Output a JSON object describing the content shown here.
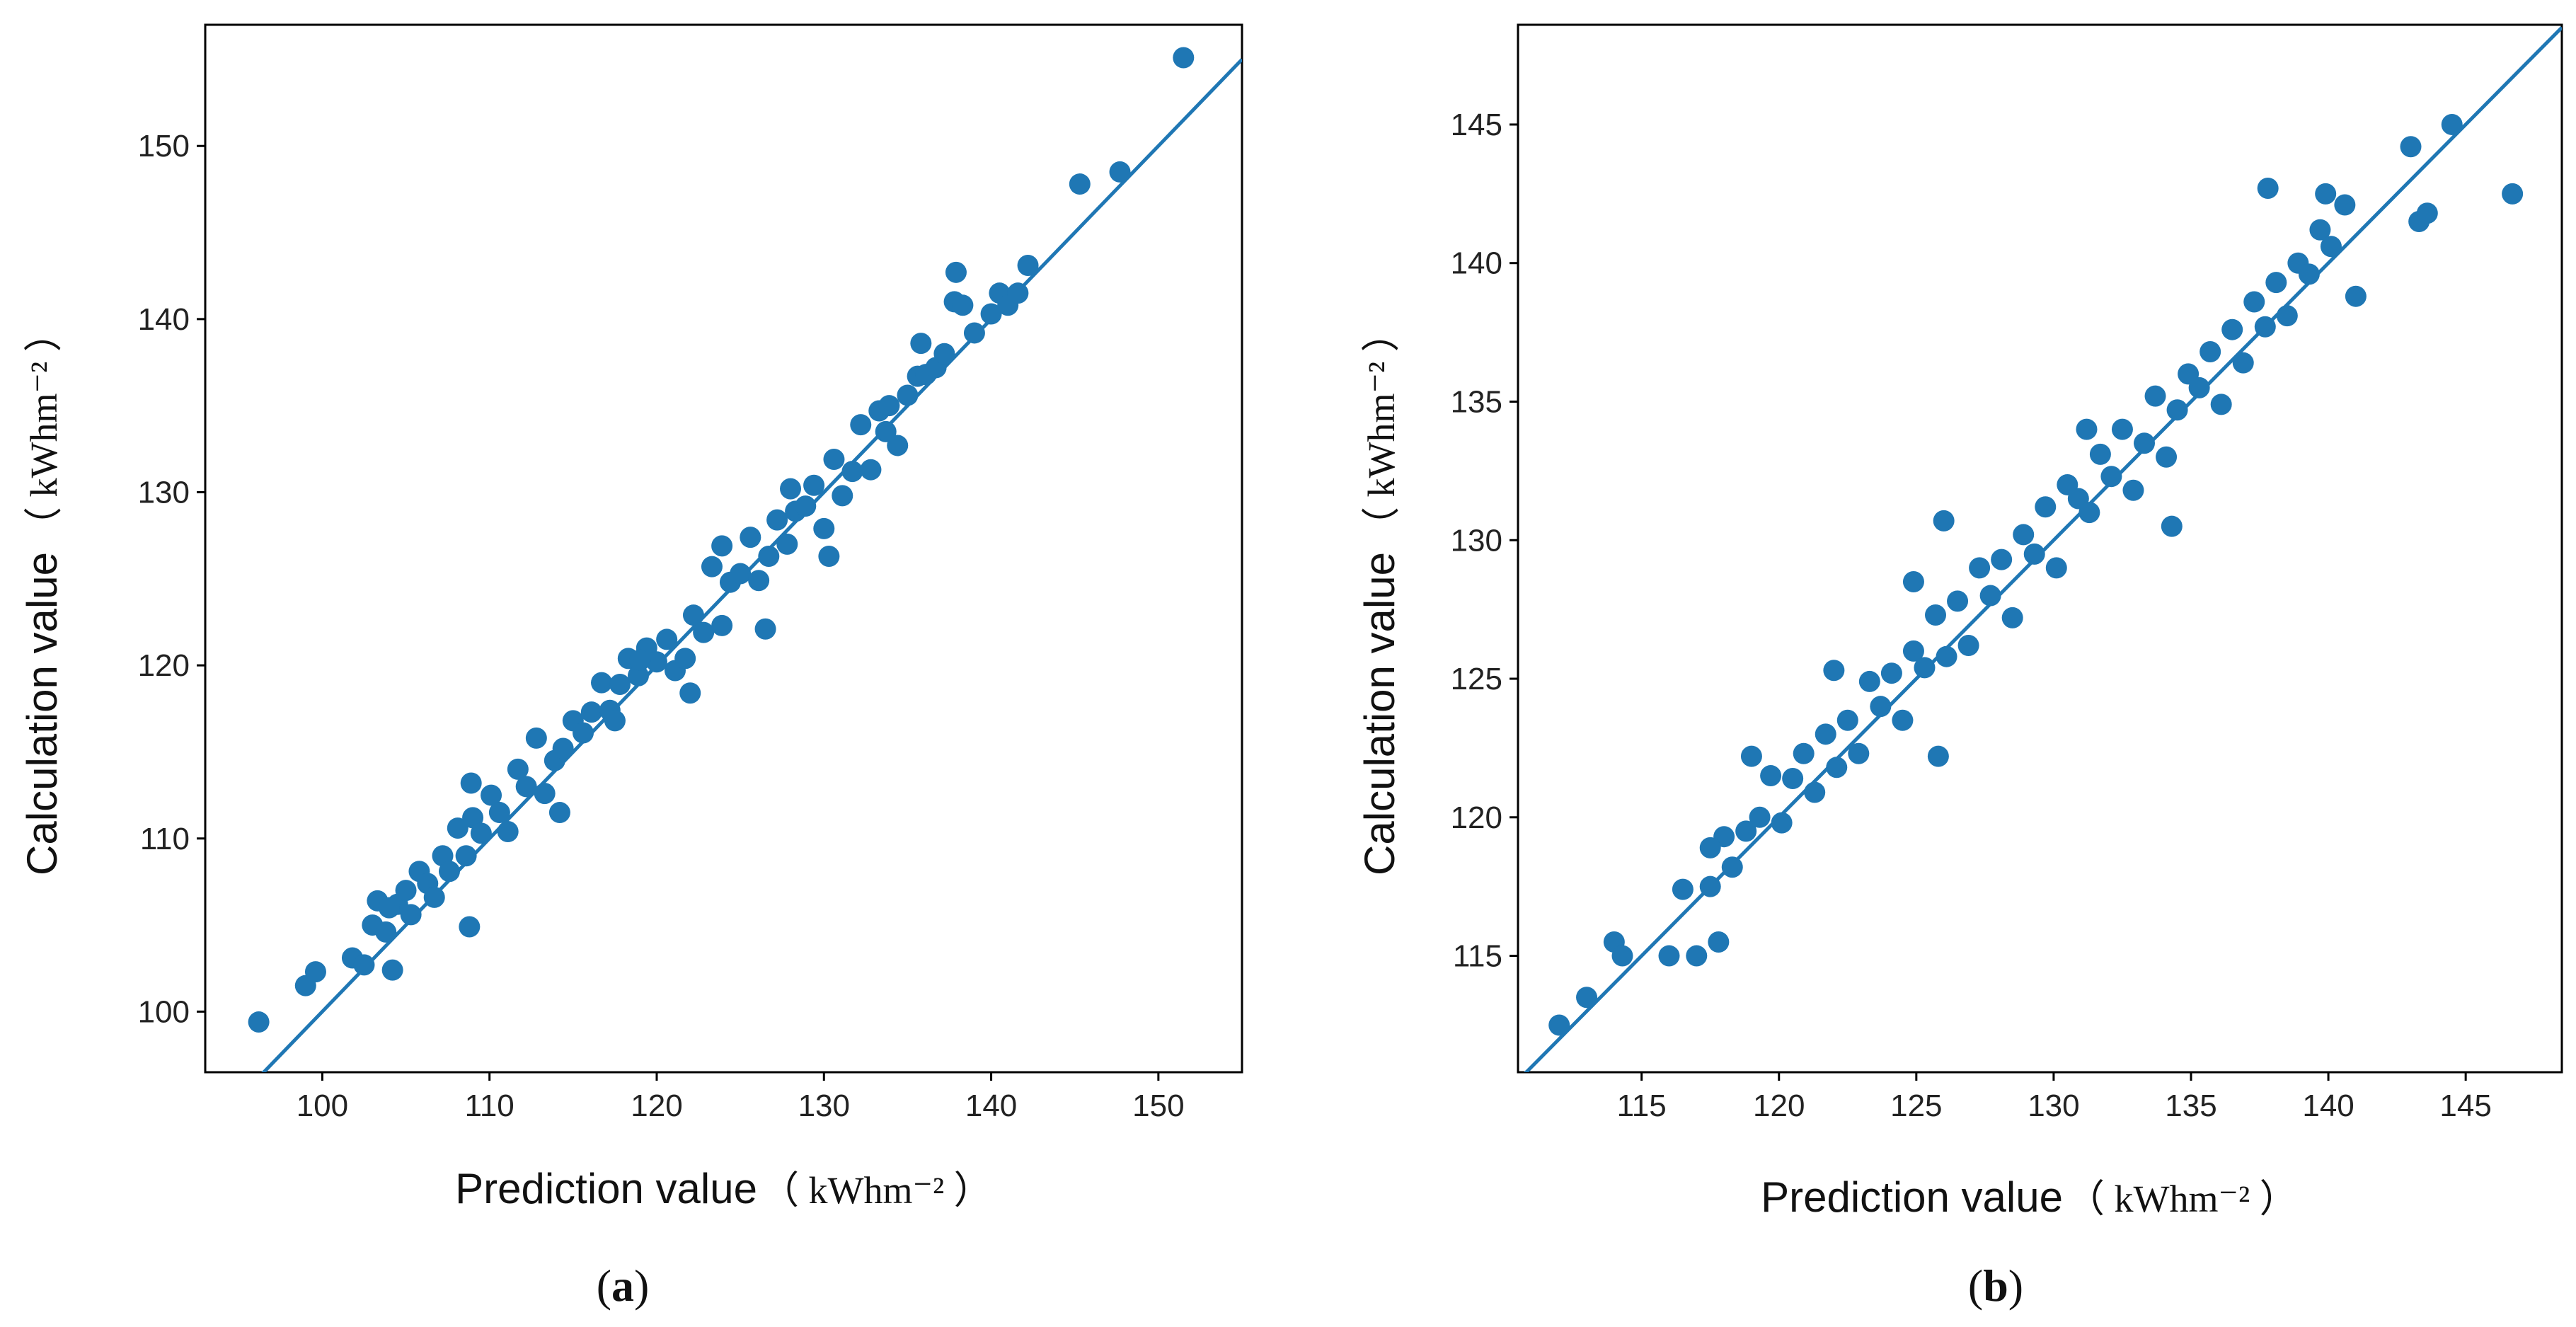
{
  "chart_data": [
    {
      "id": "a",
      "type": "scatter",
      "caption": {
        "open": "(",
        "letter": "a",
        "close": ")"
      },
      "xlabel": "Prediction value",
      "ylabel": "Calculation value",
      "unit": "（ kWhm⁻² ）",
      "xlim": [
        93,
        155
      ],
      "ylim": [
        96.5,
        157
      ],
      "xticks": [
        100,
        110,
        120,
        130,
        140,
        150
      ],
      "yticks": [
        100,
        110,
        120,
        130,
        140,
        150
      ],
      "point_color": "#1f77b4",
      "line_color": "#1f77b4",
      "fit_line": {
        "x": [
          93,
          155
        ],
        "y": [
          93,
          155
        ]
      },
      "points": {
        "x": [
          96.2,
          99.0,
          99.6,
          101.8,
          102.5,
          103.0,
          103.3,
          103.8,
          104.2,
          104.5,
          105.0,
          105.3,
          105.8,
          106.3,
          106.7,
          107.2,
          107.6,
          108.1,
          108.6,
          109.0,
          108.8,
          109.5,
          110.1,
          110.6,
          111.1,
          111.7,
          112.2,
          112.8,
          113.3,
          113.9,
          114.4,
          115.0,
          115.6,
          116.1,
          116.7,
          117.2,
          117.8,
          118.3,
          118.9,
          119.4,
          120.0,
          120.6,
          121.1,
          121.7,
          122.2,
          122.8,
          123.3,
          123.9,
          124.4,
          125.0,
          125.6,
          126.1,
          126.7,
          127.2,
          127.8,
          128.3,
          128.9,
          129.4,
          130.0,
          130.6,
          131.1,
          131.7,
          132.2,
          132.8,
          133.3,
          133.9,
          134.4,
          135.0,
          135.6,
          136.1,
          136.7,
          137.2,
          137.8,
          138.3,
          139.0,
          140.0,
          140.5,
          141.0,
          141.6,
          142.2,
          145.3,
          147.7,
          151.5,
          108.9,
          114.2,
          119.0,
          123.9,
          126.5,
          130.3,
          135.8,
          137.9,
          104.0,
          117.5,
          122.0,
          128.0,
          133.7
        ],
        "y": [
          99.4,
          101.5,
          102.3,
          103.1,
          102.7,
          105.0,
          106.4,
          104.6,
          102.4,
          106.2,
          107.0,
          105.6,
          108.1,
          107.4,
          106.6,
          109.0,
          108.1,
          110.6,
          109.0,
          111.2,
          104.9,
          110.3,
          112.5,
          111.5,
          110.4,
          114.0,
          113.0,
          115.8,
          112.6,
          114.5,
          115.2,
          116.8,
          116.1,
          117.3,
          119.0,
          117.4,
          118.9,
          120.4,
          119.4,
          121.0,
          120.2,
          121.5,
          119.7,
          120.4,
          122.9,
          121.9,
          125.7,
          122.3,
          124.8,
          125.3,
          127.4,
          124.9,
          126.3,
          128.4,
          127.0,
          128.9,
          129.2,
          130.4,
          127.9,
          131.9,
          129.8,
          131.2,
          133.9,
          131.3,
          134.7,
          135.0,
          132.7,
          135.6,
          136.7,
          136.8,
          137.2,
          138.0,
          141.0,
          140.8,
          139.2,
          140.3,
          141.5,
          140.8,
          141.5,
          143.1,
          147.8,
          148.5,
          155.1,
          113.2,
          111.5,
          120.3,
          126.9,
          122.1,
          126.3,
          138.6,
          142.7,
          106.0,
          116.8,
          118.4,
          130.2,
          133.5
        ]
      }
    },
    {
      "id": "b",
      "type": "scatter",
      "caption": {
        "open": "(",
        "letter": "b",
        "close": ")"
      },
      "xlabel": "Prediction value",
      "ylabel": "Calculation value",
      "unit": "（ kWhm⁻² ）",
      "xlim": [
        110.5,
        148.5
      ],
      "ylim": [
        110.8,
        148.6
      ],
      "xticks": [
        115,
        120,
        125,
        130,
        135,
        140,
        145
      ],
      "yticks": [
        115,
        120,
        125,
        130,
        135,
        140,
        145
      ],
      "point_color": "#1f77b4",
      "line_color": "#1f77b4",
      "fit_line": {
        "x": [
          110.5,
          148.5
        ],
        "y": [
          110.5,
          148.5
        ]
      },
      "points": {
        "x": [
          112.0,
          113.0,
          114.0,
          114.3,
          116.0,
          116.5,
          117.0,
          117.5,
          117.8,
          118.0,
          118.3,
          118.8,
          119.0,
          119.3,
          119.7,
          120.1,
          120.5,
          120.9,
          121.3,
          121.7,
          122.1,
          122.5,
          122.9,
          123.3,
          123.7,
          124.1,
          124.5,
          124.9,
          125.3,
          125.7,
          126.1,
          126.5,
          126.9,
          127.3,
          127.7,
          128.1,
          128.5,
          128.9,
          129.3,
          129.7,
          130.1,
          130.5,
          130.9,
          131.3,
          131.7,
          132.1,
          132.5,
          132.9,
          133.3,
          133.7,
          134.1,
          134.5,
          134.9,
          135.3,
          135.7,
          136.1,
          136.5,
          136.9,
          137.3,
          137.7,
          138.1,
          138.5,
          138.9,
          139.3,
          139.7,
          140.1,
          140.6,
          141.0,
          143.0,
          143.3,
          143.6,
          144.5,
          146.7,
          126.0,
          124.9,
          131.2,
          134.3,
          137.8,
          139.9,
          122.0,
          125.8,
          117.5
        ],
        "y": [
          112.5,
          113.5,
          115.5,
          115.0,
          115.0,
          117.4,
          115.0,
          117.5,
          115.5,
          119.3,
          118.2,
          119.5,
          122.2,
          120.0,
          121.5,
          119.8,
          121.4,
          122.3,
          120.9,
          123.0,
          121.8,
          123.5,
          122.3,
          124.9,
          124.0,
          125.2,
          123.5,
          126.0,
          125.4,
          127.3,
          125.8,
          127.8,
          126.2,
          129.0,
          128.0,
          129.3,
          127.2,
          130.2,
          129.5,
          131.2,
          129.0,
          132.0,
          131.5,
          131.0,
          133.1,
          132.3,
          134.0,
          131.8,
          133.5,
          135.2,
          133.0,
          134.7,
          136.0,
          135.5,
          136.8,
          134.9,
          137.6,
          136.4,
          138.6,
          137.7,
          139.3,
          138.1,
          140.0,
          139.6,
          141.2,
          140.6,
          142.1,
          138.8,
          144.2,
          141.5,
          141.8,
          145.0,
          142.5,
          130.7,
          128.5,
          134.0,
          130.5,
          142.7,
          142.5,
          125.3,
          122.2,
          118.9
        ]
      }
    }
  ]
}
